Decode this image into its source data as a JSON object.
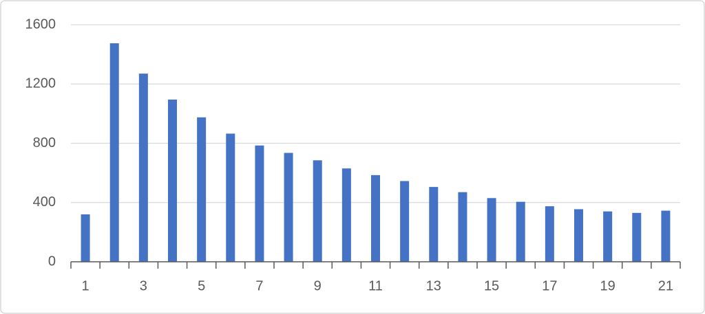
{
  "chart_data": {
    "type": "bar",
    "categories": [
      1,
      null,
      3,
      null,
      5,
      null,
      7,
      null,
      9,
      null,
      11,
      null,
      13,
      null,
      15,
      null,
      17,
      null,
      19,
      null,
      21
    ],
    "values": [
      320,
      1475,
      1270,
      1095,
      975,
      865,
      785,
      735,
      685,
      630,
      585,
      545,
      505,
      470,
      430,
      405,
      375,
      355,
      340,
      330,
      345
    ],
    "color": "#4472c4",
    "ylim": [
      0,
      1600
    ],
    "yticks": [
      0,
      400,
      800,
      1200,
      1600
    ],
    "grid": true
  }
}
